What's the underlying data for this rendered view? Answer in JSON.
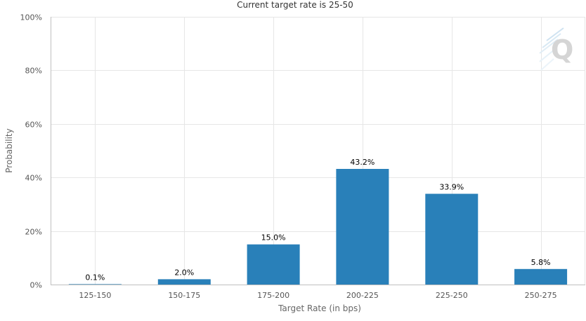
{
  "chart_data": {
    "type": "bar",
    "title": "Current target rate is 25-50",
    "xlabel": "Target Rate (in bps)",
    "ylabel": "Probability",
    "categories": [
      "125-150",
      "150-175",
      "175-200",
      "200-225",
      "225-250",
      "250-275"
    ],
    "values": [
      0.1,
      2.0,
      15.0,
      43.2,
      33.9,
      5.8
    ],
    "data_labels": [
      "0.1%",
      "2.0%",
      "15.0%",
      "43.2%",
      "33.9%",
      "5.8%"
    ],
    "ylim": [
      0,
      100
    ],
    "yticks": [
      0,
      20,
      40,
      60,
      80,
      100
    ],
    "ytick_labels": [
      "0%",
      "20%",
      "40%",
      "60%",
      "80%",
      "100%"
    ],
    "grid": true,
    "legend": "none",
    "bar_color": "#2980b9",
    "watermark_icon": "q-logo-icon"
  }
}
